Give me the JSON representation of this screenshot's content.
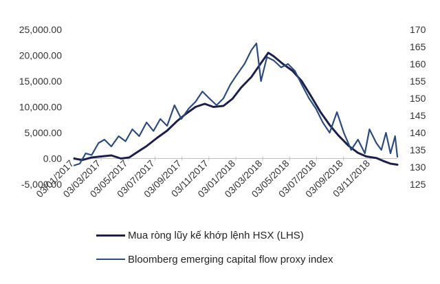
{
  "chart_data": {
    "type": "line",
    "title": "",
    "grid": false,
    "legend_position": "bottom",
    "x_tick_labels": [
      "03/01/2017",
      "03/03/2017",
      "03/05/2017",
      "03/07/2017",
      "03/09/2017",
      "03/11/2017",
      "03/01/2018",
      "03/03/2018",
      "03/05/2018",
      "03/07/2018",
      "03/09/2018",
      "03/11/2018"
    ],
    "y_left": {
      "min": -5000,
      "max": 25000,
      "tick_values": [
        -5000,
        0,
        5000,
        10000,
        15000,
        20000,
        25000
      ],
      "tick_labels": [
        "-5,000.00",
        "0.00",
        "5,000.00",
        "10,000.00",
        "15,000.00",
        "20,000.00",
        "25,000.00"
      ]
    },
    "y_right": {
      "min": 125,
      "max": 170,
      "tick_values": [
        125,
        130,
        135,
        140,
        145,
        150,
        155,
        160,
        165,
        170
      ],
      "tick_labels": [
        "125",
        "130",
        "135",
        "140",
        "145",
        "150",
        "155",
        "160",
        "165",
        "170"
      ]
    },
    "series": [
      {
        "name": "Mua ròng lũy kế khớp lệnh HSX (LHS)",
        "axis": "left",
        "color": "#1a1f4e",
        "points": [
          [
            "2017-01-03",
            0
          ],
          [
            "2017-01-20",
            -300
          ],
          [
            "2017-02-10",
            200
          ],
          [
            "2017-03-03",
            400
          ],
          [
            "2017-03-25",
            600
          ],
          [
            "2017-04-15",
            0
          ],
          [
            "2017-05-03",
            200
          ],
          [
            "2017-05-20",
            1200
          ],
          [
            "2017-06-10",
            2400
          ],
          [
            "2017-07-03",
            4000
          ],
          [
            "2017-07-25",
            5400
          ],
          [
            "2017-08-15",
            7200
          ],
          [
            "2017-09-03",
            8600
          ],
          [
            "2017-09-25",
            10000
          ],
          [
            "2017-10-15",
            10600
          ],
          [
            "2017-11-03",
            10000
          ],
          [
            "2017-11-25",
            10200
          ],
          [
            "2017-12-15",
            11600
          ],
          [
            "2018-01-03",
            13800
          ],
          [
            "2018-01-25",
            15800
          ],
          [
            "2018-02-15",
            18500
          ],
          [
            "2018-03-03",
            20500
          ],
          [
            "2018-03-15",
            19800
          ],
          [
            "2018-04-03",
            18400
          ],
          [
            "2018-04-25",
            17000
          ],
          [
            "2018-05-15",
            15000
          ],
          [
            "2018-06-03",
            12300
          ],
          [
            "2018-06-25",
            9000
          ],
          [
            "2018-07-15",
            6500
          ],
          [
            "2018-08-03",
            4500
          ],
          [
            "2018-08-25",
            2500
          ],
          [
            "2018-09-15",
            1100
          ],
          [
            "2018-10-03",
            400
          ],
          [
            "2018-10-25",
            100
          ],
          [
            "2018-11-10",
            -500
          ],
          [
            "2018-11-25",
            -1000
          ],
          [
            "2018-12-10",
            -1200
          ]
        ]
      },
      {
        "name": "Bloomberg emerging capital flow proxy index",
        "axis": "right",
        "color": "#2a4b7c",
        "points": [
          [
            "2017-01-03",
            130.5
          ],
          [
            "2017-01-15",
            131
          ],
          [
            "2017-01-28",
            134
          ],
          [
            "2017-02-10",
            133.5
          ],
          [
            "2017-02-25",
            137
          ],
          [
            "2017-03-10",
            138
          ],
          [
            "2017-03-25",
            136
          ],
          [
            "2017-04-10",
            139
          ],
          [
            "2017-04-25",
            137.5
          ],
          [
            "2017-05-10",
            141
          ],
          [
            "2017-05-25",
            139
          ],
          [
            "2017-06-10",
            143
          ],
          [
            "2017-06-25",
            140.5
          ],
          [
            "2017-07-10",
            144
          ],
          [
            "2017-07-25",
            142
          ],
          [
            "2017-08-10",
            148
          ],
          [
            "2017-08-25",
            144
          ],
          [
            "2017-09-10",
            147
          ],
          [
            "2017-09-25",
            149
          ],
          [
            "2017-10-10",
            152
          ],
          [
            "2017-10-25",
            150
          ],
          [
            "2017-11-10",
            148
          ],
          [
            "2017-11-25",
            150
          ],
          [
            "2017-12-10",
            154
          ],
          [
            "2017-12-25",
            157
          ],
          [
            "2018-01-10",
            160
          ],
          [
            "2018-01-25",
            164
          ],
          [
            "2018-02-05",
            166
          ],
          [
            "2018-02-15",
            155
          ],
          [
            "2018-02-28",
            162
          ],
          [
            "2018-03-15",
            161
          ],
          [
            "2018-03-31",
            159
          ],
          [
            "2018-04-15",
            160
          ],
          [
            "2018-04-30",
            158
          ],
          [
            "2018-05-15",
            154
          ],
          [
            "2018-05-31",
            150
          ],
          [
            "2018-06-15",
            147
          ],
          [
            "2018-06-30",
            143
          ],
          [
            "2018-07-15",
            140
          ],
          [
            "2018-07-31",
            146
          ],
          [
            "2018-08-15",
            140
          ],
          [
            "2018-08-31",
            135
          ],
          [
            "2018-09-15",
            138
          ],
          [
            "2018-09-30",
            134
          ],
          [
            "2018-10-10",
            141
          ],
          [
            "2018-10-25",
            137
          ],
          [
            "2018-11-05",
            135
          ],
          [
            "2018-11-15",
            140
          ],
          [
            "2018-11-25",
            134
          ],
          [
            "2018-12-05",
            139
          ],
          [
            "2018-12-10",
            133
          ]
        ]
      }
    ]
  }
}
